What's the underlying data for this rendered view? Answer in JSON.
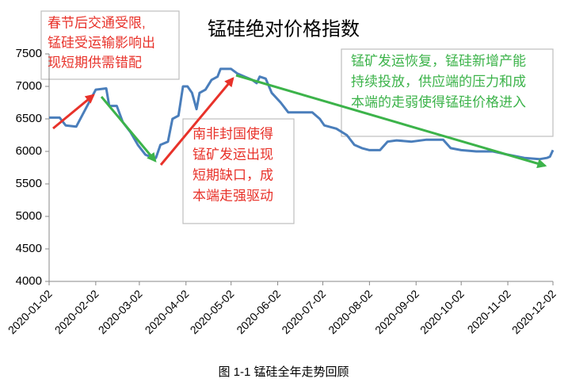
{
  "chart_data": {
    "type": "line",
    "title": "锰硅绝对价格指数",
    "caption": "图 1-1 锰硅全年走势回顾",
    "x": [
      "2020-01-02",
      "2020-01-09",
      "2020-01-13",
      "2020-01-20",
      "2020-02-02",
      "2020-02-09",
      "2020-02-11",
      "2020-02-16",
      "2020-02-20",
      "2020-02-25",
      "2020-03-01",
      "2020-03-06",
      "2020-03-11",
      "2020-03-13",
      "2020-03-16",
      "2020-03-21",
      "2020-03-24",
      "2020-03-28",
      "2020-03-31",
      "2020-04-03",
      "2020-04-06",
      "2020-04-09",
      "2020-04-11",
      "2020-04-15",
      "2020-04-19",
      "2020-04-23",
      "2020-04-25",
      "2020-05-02",
      "2020-05-06",
      "2020-05-11",
      "2020-05-16",
      "2020-05-19",
      "2020-05-21",
      "2020-05-25",
      "2020-05-29",
      "2020-06-04",
      "2020-06-09",
      "2020-06-25",
      "2020-06-30",
      "2020-07-03",
      "2020-07-11",
      "2020-07-18",
      "2020-07-23",
      "2020-07-28",
      "2020-08-02",
      "2020-08-09",
      "2020-08-14",
      "2020-08-20",
      "2020-08-30",
      "2020-09-09",
      "2020-09-20",
      "2020-09-25",
      "2020-10-02",
      "2020-10-12",
      "2020-10-23",
      "2020-11-02",
      "2020-11-13",
      "2020-11-23",
      "2020-11-28",
      "2020-11-30",
      "2020-12-02"
    ],
    "series": [
      {
        "color": "#4a7ebb",
        "values": [
          6520,
          6520,
          6400,
          6380,
          6950,
          6970,
          6700,
          6700,
          6450,
          6300,
          6100,
          5950,
          5900,
          5900,
          6100,
          6150,
          6500,
          6550,
          7000,
          7000,
          6900,
          6650,
          6900,
          6950,
          7100,
          7150,
          7270,
          7270,
          7200,
          7150,
          7100,
          7050,
          7150,
          7120,
          6900,
          6750,
          6600,
          6600,
          6500,
          6400,
          6350,
          6250,
          6100,
          6050,
          6020,
          6020,
          6150,
          6170,
          6150,
          6180,
          6180,
          6050,
          6020,
          6000,
          6000,
          5950,
          5900,
          5880,
          5900,
          5920,
          6020
        ]
      }
    ],
    "xlim": [
      "2020-01-02",
      "2020-12-02"
    ],
    "xticks": [
      "2020-01-02",
      "2020-02-02",
      "2020-03-02",
      "2020-04-02",
      "2020-05-02",
      "2020-06-02",
      "2020-07-02",
      "2020-08-02",
      "2020-09-02",
      "2020-10-02",
      "2020-11-02",
      "2020-12-02"
    ],
    "ylim": [
      4000,
      7500
    ],
    "yticks": [
      4000,
      4500,
      5000,
      5500,
      6000,
      6500,
      7000,
      7500
    ],
    "annotations": [
      {
        "color": "#e8322a",
        "lines": [
          "春节后交通受限,",
          "锰硅受运输影响出",
          "现短期供需错配"
        ]
      },
      {
        "color": "#e8322a",
        "lines": [
          "南非封国使得",
          "锰矿发运出现",
          "短期缺口，成",
          "本端走强驱动"
        ]
      },
      {
        "color": "#3cb34a",
        "lines": [
          "锰矿发运恢复，锰硅新增产能",
          "持续投放，供应端的压力和成",
          "本端的走弱使得锰硅价格进入"
        ]
      }
    ]
  }
}
